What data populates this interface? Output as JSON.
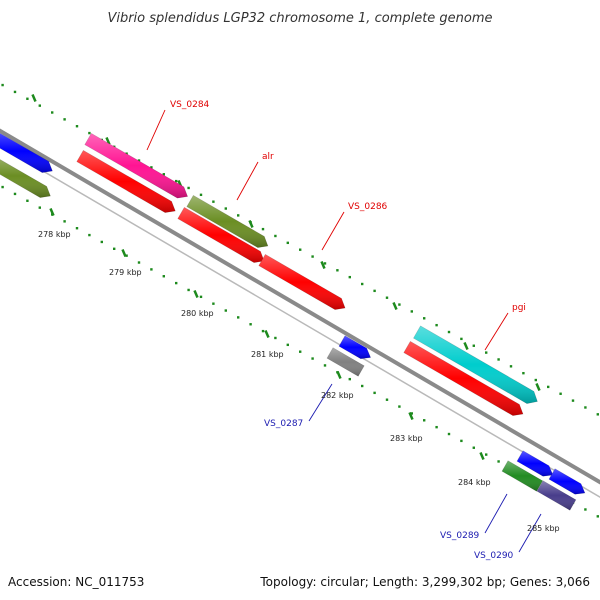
{
  "title": "Vibrio splendidus LGP32 chromosome 1, complete genome",
  "footer": {
    "accession": "Accession: NC_011753",
    "stats": "Topology: circular; Length: 3,299,302 bp; Genes: 3,066"
  },
  "colors": {
    "backbone": "#8a8a8a",
    "dots": "#1d8a1d",
    "label_red": "#e00000",
    "label_blue": "#1a1ab0"
  },
  "ticks": [
    {
      "label": "278 kbp"
    },
    {
      "label": "279 kbp"
    },
    {
      "label": "280 kbp"
    },
    {
      "label": "281 kbp"
    },
    {
      "label": "282 kbp"
    },
    {
      "label": "283 kbp"
    },
    {
      "label": "284 kbp"
    },
    {
      "label": "285 kbp"
    }
  ],
  "genes": [
    {
      "name": "blue-gene-left",
      "color": "#0000ff"
    },
    {
      "name": "olive-gene-left",
      "color": "#6b8e23"
    },
    {
      "name": "VS_0284",
      "color": "#ff1493"
    },
    {
      "name": "red-gene-1",
      "color": "#ff0000"
    },
    {
      "name": "alr",
      "color": "#6b8e23"
    },
    {
      "name": "red-gene-2",
      "color": "#ff0000"
    },
    {
      "name": "VS_0286",
      "color": "#ff0000"
    },
    {
      "name": "blue-gene-mid",
      "color": "#0000ff"
    },
    {
      "name": "VS_0287",
      "color": "#808080"
    },
    {
      "name": "pgi",
      "color": "#00cdcd"
    },
    {
      "name": "red-gene-pgi",
      "color": "#ff0000"
    },
    {
      "name": "blue-gene-right-1",
      "color": "#0000ff"
    },
    {
      "name": "blue-gene-right-2",
      "color": "#0000ff"
    },
    {
      "name": "VS_0289",
      "color": "#228b22"
    },
    {
      "name": "VS_0290",
      "color": "#483d8b"
    }
  ],
  "labels": [
    {
      "text": "VS_0284"
    },
    {
      "text": "alr"
    },
    {
      "text": "VS_0286"
    },
    {
      "text": "pgi"
    },
    {
      "text": "VS_0287"
    },
    {
      "text": "VS_0289"
    },
    {
      "text": "VS_0290"
    }
  ]
}
